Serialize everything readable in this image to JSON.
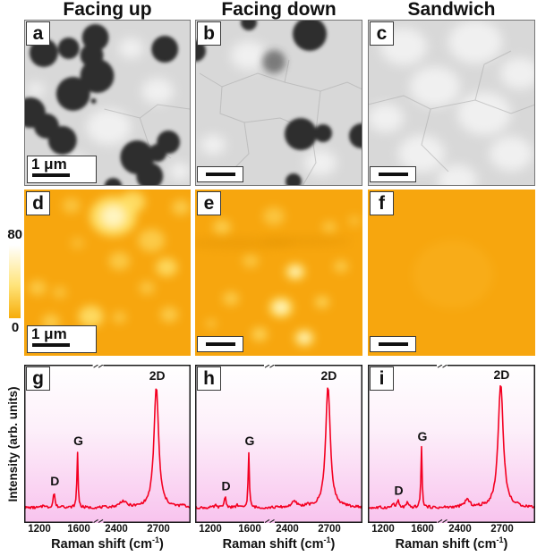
{
  "colors": {
    "sem_background": "#d8d8d8",
    "sem_blob": "#2e2e2e",
    "afm_orange": "#f7a60e",
    "afm_patch": "#ffe36e",
    "afm_patch_core": "#fff7c6",
    "curve_red": "#f40022",
    "spectrum_pink_bottom": "#f8c3ee",
    "colorbar_top": "#ffffff",
    "colorbar_mid": "#ffe47a",
    "colorbar_bottom": "#f6ad0a"
  },
  "columns": [
    {
      "title": "Facing up",
      "sem_label": "a",
      "afm_label": "d",
      "spec_label": "g"
    },
    {
      "title": "Facing down",
      "sem_label": "b",
      "afm_label": "e",
      "spec_label": "h"
    },
    {
      "title": "Sandwich",
      "sem_label": "c",
      "afm_label": "f",
      "spec_label": "i"
    }
  ],
  "colorbar": {
    "max": "80",
    "min": "0"
  },
  "scale_bar": {
    "text": "1 μm"
  },
  "spectra_axis": {
    "ylabel": "Intensity (arb. units)",
    "xlabel": "Raman shift (cm⁻¹)",
    "xlabel_parts": {
      "main": "Raman shift (cm",
      "sup": "-1",
      "close": ")"
    },
    "ticks": [
      "1200",
      "1600",
      "2400",
      "2700"
    ]
  },
  "chart_data": [
    {
      "type": "line",
      "panel": "g",
      "condition": "Facing up",
      "xlabel": "Raman shift (cm⁻¹)",
      "ylabel": "Intensity (arb. units)",
      "x_tick_values": [
        1200,
        1600,
        2400,
        2700
      ],
      "x_axis_segments": [
        [
          1045,
          1800
        ],
        [
          2272,
          2930
        ]
      ],
      "axis_break_between": [
        1800,
        2272
      ],
      "grid": false,
      "line_color": "#f40022",
      "peaks": [
        {
          "label": "D",
          "center": 1350,
          "height": 0.105,
          "hwhm": 10
        },
        {
          "label": "G",
          "center": 1590,
          "height": 0.37,
          "hwhm": 7
        },
        {
          "label": "",
          "center": 2450,
          "height": 0.04,
          "hwhm": 28
        },
        {
          "label": "2D",
          "center": 2690,
          "height": 0.8,
          "hwhm": 20
        }
      ],
      "minor_peaks": [
        [
          1245,
          0.02,
          12
        ],
        [
          1440,
          0.018,
          10
        ],
        [
          2880,
          0.012,
          14
        ]
      ],
      "noise_amplitude": 0.009
    },
    {
      "type": "line",
      "panel": "h",
      "condition": "Facing down",
      "xlabel": "Raman shift (cm⁻¹)",
      "ylabel": "Intensity (arb. units)",
      "x_tick_values": [
        1200,
        1600,
        2400,
        2700
      ],
      "x_axis_segments": [
        [
          1045,
          1800
        ],
        [
          2272,
          2930
        ]
      ],
      "axis_break_between": [
        1800,
        2272
      ],
      "grid": false,
      "line_color": "#f40022",
      "peaks": [
        {
          "label": "D",
          "center": 1350,
          "height": 0.075,
          "hwhm": 11
        },
        {
          "label": "G",
          "center": 1590,
          "height": 0.37,
          "hwhm": 7
        },
        {
          "label": "",
          "center": 2450,
          "height": 0.035,
          "hwhm": 25
        },
        {
          "label": "2D",
          "center": 2690,
          "height": 0.8,
          "hwhm": 20
        }
      ],
      "minor_peaks": [
        [
          1250,
          0.015,
          12
        ],
        [
          1470,
          0.02,
          10
        ],
        [
          2540,
          0.012,
          12
        ]
      ],
      "noise_amplitude": 0.009
    },
    {
      "type": "line",
      "panel": "i",
      "condition": "Sandwich",
      "xlabel": "Raman shift (cm⁻¹)",
      "ylabel": "Intensity (arb. units)",
      "x_tick_values": [
        1200,
        1600,
        2400,
        2700
      ],
      "x_axis_segments": [
        [
          1045,
          1800
        ],
        [
          2272,
          2930
        ]
      ],
      "axis_break_between": [
        1800,
        2272
      ],
      "grid": false,
      "line_color": "#f40022",
      "peaks": [
        {
          "label": "D",
          "center": 1350,
          "height": 0.045,
          "hwhm": 12
        },
        {
          "label": "G",
          "center": 1590,
          "height": 0.4,
          "hwhm": 7
        },
        {
          "label": "",
          "center": 2450,
          "height": 0.05,
          "hwhm": 20
        },
        {
          "label": "2D",
          "center": 2690,
          "height": 0.82,
          "hwhm": 22
        }
      ],
      "minor_peaks": [
        [
          1300,
          0.028,
          10
        ],
        [
          1445,
          0.03,
          12
        ]
      ],
      "noise_amplitude": 0.011
    }
  ],
  "microscopy_panels": {
    "a": {
      "type": "sem",
      "blobs": [
        [
          22,
          37,
          16
        ],
        [
          50,
          32,
          12
        ],
        [
          80,
          20,
          15
        ],
        [
          76,
          40,
          13
        ],
        [
          158,
          33,
          15
        ],
        [
          82,
          63,
          19
        ],
        [
          55,
          83,
          19
        ],
        [
          7,
          104,
          17
        ],
        [
          25,
          119,
          14
        ],
        [
          43,
          135,
          16
        ],
        [
          78,
          91,
          3
        ],
        [
          162,
          137,
          13
        ],
        [
          150,
          149,
          10
        ],
        [
          127,
          154,
          19
        ],
        [
          141,
          175,
          15
        ],
        [
          100,
          187,
          10
        ]
      ],
      "bright_patches": [
        [
          120,
          32,
          14
        ],
        [
          13,
          78,
          10
        ],
        [
          95,
          120,
          25
        ],
        [
          60,
          160,
          12
        ],
        [
          150,
          80,
          18
        ],
        [
          175,
          170,
          12
        ]
      ],
      "grain_lines": [
        [
          [
            90,
            100
          ],
          [
            130,
            110
          ],
          [
            150,
            95
          ],
          [
            186,
            100
          ]
        ],
        [
          [
            130,
            110
          ],
          [
            140,
            140
          ],
          [
            165,
            155
          ]
        ]
      ]
    },
    "b": {
      "type": "sem",
      "blobs": [
        [
          128,
          16,
          19
        ],
        [
          60,
          3,
          9
        ],
        [
          0,
          35,
          12
        ],
        [
          118,
          128,
          18
        ],
        [
          143,
          127,
          10
        ],
        [
          186,
          130,
          14
        ],
        [
          110,
          181,
          9
        ]
      ],
      "fuzzy_blobs": [
        [
          88,
          47,
          13
        ]
      ],
      "bright_patches": [
        [
          60,
          40,
          20
        ],
        [
          140,
          160,
          18
        ],
        [
          20,
          140,
          14
        ]
      ],
      "grain_lines": [
        [
          [
            5,
            60
          ],
          [
            30,
            75
          ],
          [
            28,
            105
          ],
          [
            55,
            115
          ],
          [
            60,
            150
          ],
          [
            40,
            170
          ]
        ],
        [
          [
            30,
            75
          ],
          [
            70,
            60
          ],
          [
            100,
            70
          ],
          [
            105,
            45
          ]
        ],
        [
          [
            55,
            115
          ],
          [
            95,
            110
          ],
          [
            130,
            125
          ],
          [
            135,
            160
          ],
          [
            120,
            186
          ]
        ],
        [
          [
            100,
            70
          ],
          [
            140,
            80
          ],
          [
            170,
            70
          ],
          [
            187,
            78
          ]
        ],
        [
          [
            140,
            80
          ],
          [
            135,
            125
          ]
        ]
      ]
    },
    "c": {
      "type": "sem",
      "blobs": [],
      "bright_patches": [
        [
          40,
          30,
          26
        ],
        [
          120,
          25,
          30
        ],
        [
          170,
          60,
          22
        ],
        [
          75,
          75,
          28
        ],
        [
          20,
          110,
          20
        ],
        [
          130,
          105,
          30
        ],
        [
          60,
          150,
          26
        ],
        [
          160,
          150,
          24
        ],
        [
          100,
          180,
          22
        ]
      ],
      "grain_lines": [
        [
          [
            0,
            95
          ],
          [
            40,
            85
          ],
          [
            70,
            100
          ],
          [
            120,
            90
          ],
          [
            160,
            105
          ],
          [
            187,
            95
          ]
        ],
        [
          [
            70,
            100
          ],
          [
            60,
            140
          ],
          [
            90,
            170
          ]
        ],
        [
          [
            120,
            90
          ],
          [
            130,
            50
          ],
          [
            160,
            35
          ]
        ]
      ]
    }
  },
  "afm_panels": {
    "d": {
      "patches": [
        [
          100,
          30,
          26,
          0.95
        ],
        [
          122,
          14,
          14,
          0.85
        ],
        [
          53,
          18,
          10,
          0.5
        ],
        [
          143,
          57,
          15,
          0.6
        ],
        [
          160,
          87,
          12,
          0.8
        ],
        [
          107,
          80,
          12,
          0.55
        ],
        [
          15,
          110,
          10,
          0.55
        ],
        [
          40,
          115,
          8,
          0.45
        ],
        [
          75,
          142,
          14,
          0.85
        ],
        [
          30,
          148,
          10,
          0.6
        ],
        [
          107,
          143,
          8,
          0.5
        ],
        [
          163,
          140,
          10,
          0.6
        ],
        [
          138,
          110,
          9,
          0.5
        ],
        [
          60,
          60,
          8,
          0.35
        ],
        [
          176,
          20,
          10,
          0.6
        ]
      ]
    },
    "e": {
      "patches": [
        [
          30,
          42,
          10,
          0.6
        ],
        [
          88,
          30,
          12,
          0.5
        ],
        [
          150,
          42,
          8,
          0.5
        ],
        [
          62,
          80,
          9,
          0.5
        ],
        [
          112,
          92,
          11,
          0.9
        ],
        [
          163,
          86,
          8,
          0.6
        ],
        [
          40,
          122,
          9,
          0.6
        ],
        [
          96,
          132,
          13,
          1.0
        ],
        [
          142,
          126,
          8,
          0.7
        ],
        [
          72,
          162,
          9,
          0.7
        ],
        [
          122,
          166,
          11,
          0.9
        ],
        [
          18,
          150,
          6,
          0.5
        ],
        [
          178,
          35,
          7,
          0.4
        ]
      ],
      "dark_streaks": [
        [
          20,
          60,
          60,
          7
        ],
        [
          100,
          58,
          50,
          6
        ]
      ]
    },
    "f": {
      "patches": [
        [
          95,
          95,
          45,
          0.1
        ]
      ]
    }
  }
}
